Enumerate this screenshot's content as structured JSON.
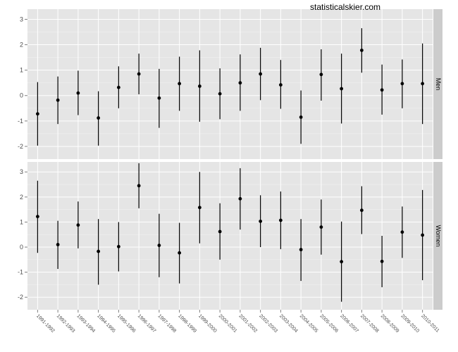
{
  "watermark": "statisticalskier.com",
  "chart_data": {
    "type": "scatter",
    "subtype": "pointrange",
    "facet": "rows",
    "categories": [
      "1991-1992",
      "1992-1993",
      "1993-1994",
      "1994-1995",
      "1995-1996",
      "1996-1997",
      "1997-1998",
      "1998-1999",
      "1999-2000",
      "2000-2001",
      "2001-2002",
      "2002-2003",
      "2003-2004",
      "2004-2005",
      "2005-2006",
      "2006-2007",
      "2007-2008",
      "2008-2009",
      "2009-2010",
      "2010-2011"
    ],
    "ylim": [
      -2.5,
      3.4
    ],
    "yticks": [
      -2,
      -1,
      0,
      1,
      2,
      3
    ],
    "grid": true,
    "series": [
      {
        "name": "Men",
        "values": [
          -0.72,
          -0.18,
          0.1,
          -0.88,
          0.32,
          0.85,
          -0.1,
          0.47,
          0.37,
          0.07,
          0.5,
          0.85,
          0.42,
          -0.85,
          0.83,
          0.27,
          1.78,
          0.22,
          0.47,
          0.47
        ],
        "low": [
          -1.97,
          -1.12,
          -0.77,
          -1.97,
          -0.5,
          0.05,
          -1.27,
          -0.6,
          -1.03,
          -0.93,
          -0.6,
          -0.18,
          -0.52,
          -1.9,
          -0.2,
          -1.1,
          0.9,
          -0.75,
          -0.5,
          -1.12
        ],
        "high": [
          0.53,
          0.75,
          0.98,
          0.17,
          1.15,
          1.65,
          1.05,
          1.53,
          1.78,
          1.07,
          1.62,
          1.88,
          1.4,
          0.2,
          1.82,
          1.65,
          2.65,
          1.22,
          1.42,
          2.05
        ]
      },
      {
        "name": "Women",
        "values": [
          1.22,
          0.1,
          0.88,
          -0.17,
          0.02,
          2.45,
          0.07,
          -0.23,
          1.58,
          0.62,
          1.93,
          1.03,
          1.07,
          -0.1,
          0.8,
          -0.58,
          1.47,
          -0.57,
          0.6,
          0.48
        ],
        "low": [
          -0.23,
          -0.87,
          -0.05,
          -1.5,
          -0.97,
          1.55,
          -1.2,
          -1.45,
          0.15,
          -0.5,
          0.7,
          0.0,
          -0.08,
          -1.35,
          -0.3,
          -2.18,
          0.52,
          -1.6,
          -0.43,
          -1.32
        ],
        "high": [
          2.65,
          1.05,
          1.82,
          1.12,
          1.0,
          3.35,
          1.33,
          0.97,
          3.0,
          1.75,
          3.15,
          2.07,
          2.22,
          1.12,
          1.9,
          1.02,
          2.43,
          0.45,
          1.62,
          2.28
        ]
      }
    ]
  }
}
